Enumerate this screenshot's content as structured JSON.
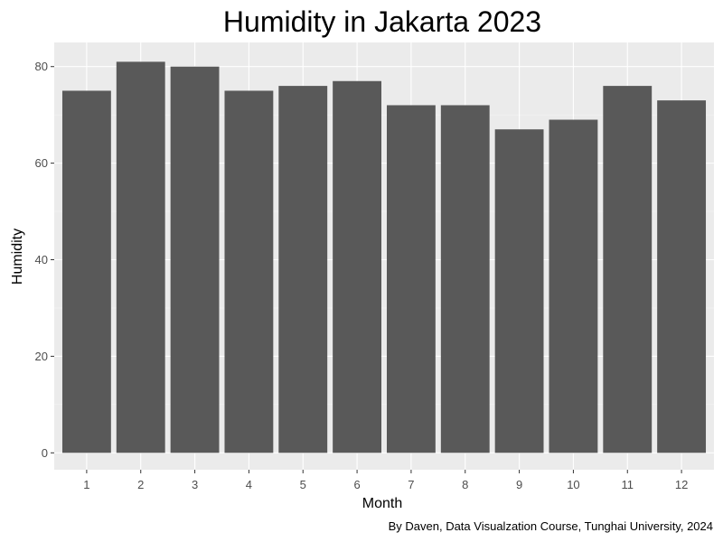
{
  "chart_data": {
    "type": "bar",
    "title": "Humidity in Jakarta 2023",
    "xlabel": "Month",
    "ylabel": "Humidity",
    "caption": "By Daven, Data Visualzation Course, Tunghai University, 2024",
    "categories": [
      "1",
      "2",
      "3",
      "4",
      "5",
      "6",
      "7",
      "8",
      "9",
      "10",
      "11",
      "12"
    ],
    "values": [
      75,
      81,
      80,
      75,
      76,
      77,
      72,
      72,
      67,
      69,
      76,
      73
    ],
    "ylim": [
      -3.5,
      85
    ],
    "yticks": [
      0,
      20,
      40,
      60,
      80
    ],
    "ytick_labels": [
      "0",
      "20",
      "40",
      "60",
      "80"
    ],
    "grid": true,
    "legend": "none",
    "colors": {
      "bar": "#595959",
      "panel": "#ebebeb",
      "grid_major": "#ffffff",
      "grid_minor": "#f5f5f5",
      "tick_label": "#4d4d4d",
      "tick_mark": "#333333"
    }
  }
}
